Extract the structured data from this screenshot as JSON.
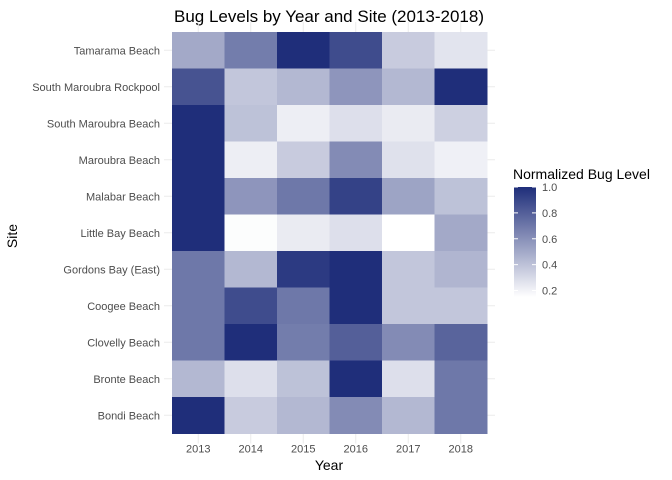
{
  "chart_data": {
    "type": "heatmap",
    "title": "Bug Levels by Year and Site (2013-2018)",
    "xlabel": "Year",
    "ylabel": "Site",
    "x_categories": [
      "2013",
      "2014",
      "2015",
      "2016",
      "2017",
      "2018"
    ],
    "y_categories": [
      "Tamarama Beach",
      "South Maroubra Rockpool",
      "South Maroubra Beach",
      "Maroubra Beach",
      "Malabar Beach",
      "Little Bay Beach",
      "Gordons Bay (East)",
      "Coogee Beach",
      "Clovelly Beach",
      "Bronte Beach",
      "Bondi Beach"
    ],
    "values": [
      [
        0.5,
        0.68,
        1.0,
        0.88,
        0.36,
        0.26
      ],
      [
        0.85,
        0.38,
        0.44,
        0.58,
        0.44,
        1.0
      ],
      [
        1.0,
        0.4,
        0.22,
        0.28,
        0.23,
        0.34
      ],
      [
        1.0,
        0.22,
        0.36,
        0.62,
        0.27,
        0.21
      ],
      [
        1.0,
        0.58,
        0.7,
        0.92,
        0.52,
        0.4
      ],
      [
        1.0,
        0.16,
        0.23,
        0.28,
        0.15,
        0.5
      ],
      [
        0.7,
        0.44,
        0.95,
        1.0,
        0.38,
        0.45
      ],
      [
        0.7,
        0.88,
        0.7,
        1.0,
        0.38,
        0.38
      ],
      [
        0.7,
        1.0,
        0.68,
        0.8,
        0.62,
        0.78
      ],
      [
        0.44,
        0.28,
        0.4,
        1.0,
        0.28,
        0.7
      ],
      [
        1.0,
        0.36,
        0.44,
        0.62,
        0.44,
        0.7
      ]
    ],
    "legend": {
      "title": "Normalized Bug Level",
      "ticks": [
        "0.2",
        "0.4",
        "0.6",
        "0.8",
        "1.0"
      ],
      "tick_values": [
        0.2,
        0.4,
        0.6,
        0.8,
        1.0
      ],
      "range": [
        0.15,
        1.0
      ],
      "placement": "right"
    },
    "colors": {
      "low": "#ffffff",
      "high": "#1f2e7a",
      "grid": "#ebebeb"
    },
    "grid": true
  }
}
